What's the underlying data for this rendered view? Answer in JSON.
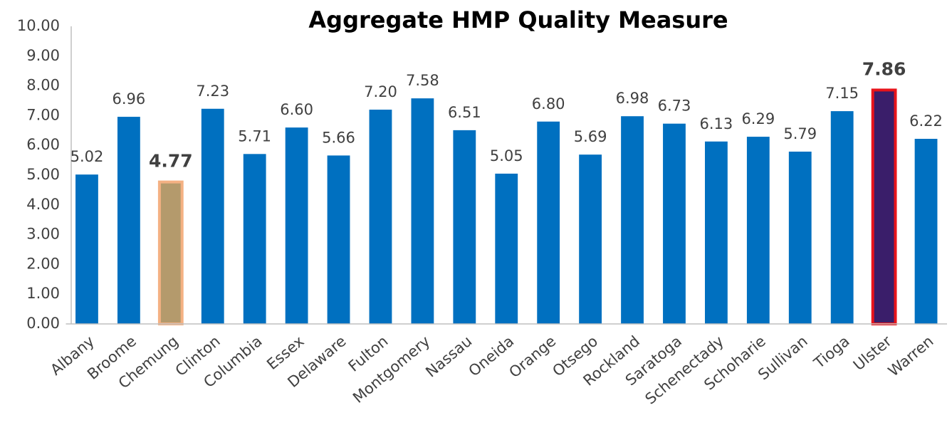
{
  "chart_data": {
    "type": "bar",
    "title": "Aggregate HMP Quality Measure",
    "categories": [
      "Albany",
      "Broome",
      "Chemung",
      "Clinton",
      "Columbia",
      "Essex",
      "Delaware",
      "Fulton",
      "Montgomery",
      "Nassau",
      "Oneida",
      "Orange",
      "Otsego",
      "Rockland",
      "Saratoga",
      "Schenectady",
      "Schoharie",
      "Sullivan",
      "Tioga",
      "Ulster",
      "Warren"
    ],
    "values": [
      5.02,
      6.96,
      4.77,
      7.23,
      5.71,
      6.6,
      5.66,
      7.2,
      7.58,
      6.51,
      5.05,
      6.8,
      5.69,
      6.98,
      6.73,
      6.13,
      6.29,
      5.79,
      7.15,
      7.86,
      6.22
    ],
    "value_labels": [
      "5.02",
      "6.96",
      "4.77",
      "7.23",
      "5.71",
      "6.60",
      "5.66",
      "7.20",
      "7.58",
      "6.51",
      "5.05",
      "6.80",
      "5.69",
      "6.98",
      "6.73",
      "6.13",
      "6.29",
      "5.79",
      "7.15",
      "7.86",
      "6.22"
    ],
    "colors": [
      "#0070c0",
      "#0070c0",
      "#b49a6c",
      "#0070c0",
      "#0070c0",
      "#0070c0",
      "#0070c0",
      "#0070c0",
      "#0070c0",
      "#0070c0",
      "#0070c0",
      "#0070c0",
      "#0070c0",
      "#0070c0",
      "#0070c0",
      "#0070c0",
      "#0070c0",
      "#0070c0",
      "#0070c0",
      "#3a1e6a",
      "#0070c0"
    ],
    "edge_colors": [
      null,
      null,
      "#f4b183",
      null,
      null,
      null,
      null,
      null,
      null,
      null,
      null,
      null,
      null,
      null,
      null,
      null,
      null,
      null,
      null,
      "#e8141b",
      null
    ],
    "ylim": [
      0,
      10
    ],
    "yticks": [
      {
        "value": 0,
        "label": "0.00"
      },
      {
        "value": 1,
        "label": "1.00"
      },
      {
        "value": 2,
        "label": "2.00"
      },
      {
        "value": 3,
        "label": "3.00"
      },
      {
        "value": 4,
        "label": "4.00"
      },
      {
        "value": 5,
        "label": "5.00"
      },
      {
        "value": 6,
        "label": "6.00"
      },
      {
        "value": 7,
        "label": "7.00"
      },
      {
        "value": 8,
        "label": "8.00"
      },
      {
        "value": 9,
        "label": "9.00"
      },
      {
        "value": 10,
        "label": "10.00"
      }
    ],
    "grid": false
  }
}
